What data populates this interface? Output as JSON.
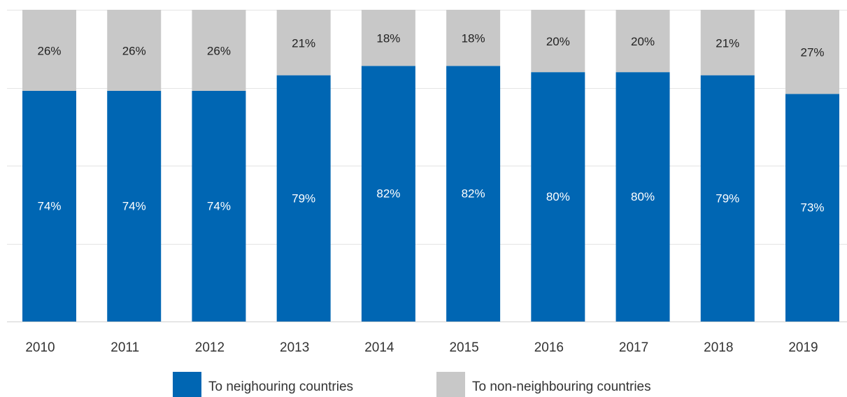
{
  "chart_data": {
    "type": "bar",
    "stacked": true,
    "title": "",
    "xlabel": "",
    "ylabel": "",
    "ylim": [
      0,
      100
    ],
    "grid": true,
    "legend_position": "bottom",
    "categories": [
      "2010",
      "2011",
      "2012",
      "2013",
      "2014",
      "2015",
      "2016",
      "2017",
      "2018",
      "2019"
    ],
    "series": [
      {
        "name": "To neighouring countries",
        "color": "#0066b3",
        "values": [
          74,
          74,
          74,
          79,
          82,
          82,
          80,
          80,
          79,
          73
        ],
        "labels": [
          "74%",
          "74%",
          "74%",
          "79%",
          "82%",
          "82%",
          "80%",
          "80%",
          "79%",
          "73%"
        ]
      },
      {
        "name": "To non-neighbouring countries",
        "color": "#c8c8c8",
        "values": [
          26,
          26,
          26,
          21,
          18,
          18,
          20,
          20,
          21,
          27
        ],
        "labels": [
          "26%",
          "26%",
          "26%",
          "21%",
          "18%",
          "18%",
          "20%",
          "20%",
          "21%",
          "27%"
        ]
      }
    ]
  }
}
